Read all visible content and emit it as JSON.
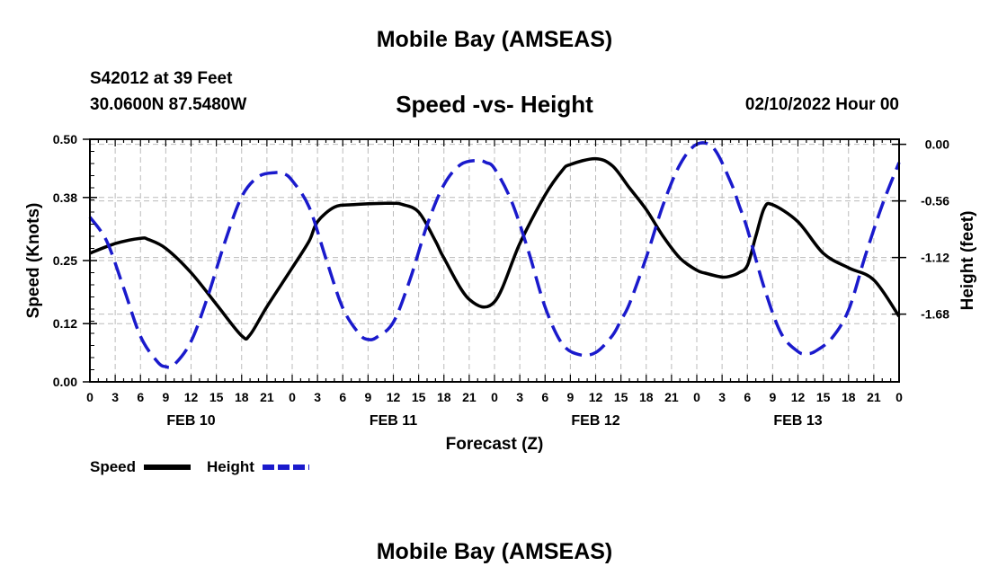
{
  "header": {
    "title": "Mobile Bay (AMSEAS)",
    "station": "S42012 at 39 Feet",
    "coords": "30.0600N  87.5480W",
    "chart_title": "Speed -vs- Height",
    "datetime": "02/10/2022 Hour 00"
  },
  "footer": {
    "title": "Mobile Bay (AMSEAS)"
  },
  "colors": {
    "speed": "#000000",
    "height": "#1a1acc",
    "grid": "#bbbbbb"
  },
  "chart_data": {
    "type": "line",
    "title": "Speed -vs- Height",
    "xlabel": "Forecast (Z)",
    "ylabel": "Speed (Knots)",
    "y2label": "Height (feet)",
    "xlim": [
      0,
      96
    ],
    "ylim": [
      0.0,
      0.5
    ],
    "y2lim": [
      -2.35,
      0.05
    ],
    "y_ticks": [
      0.0,
      0.12,
      0.25,
      0.38,
      0.5
    ],
    "y_tick_labels": [
      "0.00",
      "0.12",
      "0.25",
      "0.38",
      "0.50"
    ],
    "y2_ticks": [
      0.0,
      -0.56,
      -1.12,
      -1.68
    ],
    "y2_tick_labels": [
      "0.00",
      "-0.56",
      "-1.12",
      "-1.68"
    ],
    "x_tick_labels": [
      "0",
      "3",
      "6",
      "9",
      "12",
      "15",
      "18",
      "21",
      "0",
      "3",
      "6",
      "9",
      "12",
      "15",
      "18",
      "21",
      "0",
      "3",
      "6",
      "9",
      "12",
      "15",
      "18",
      "21",
      "0",
      "3",
      "6",
      "9",
      "12",
      "15",
      "18",
      "21",
      "0"
    ],
    "day_labels": [
      {
        "hour": 12,
        "label": "FEB 10"
      },
      {
        "hour": 36,
        "label": "FEB 11"
      },
      {
        "hour": 60,
        "label": "FEB 12"
      },
      {
        "hour": 84,
        "label": "FEB 13"
      }
    ],
    "legend_placement": "bottom-left",
    "series": [
      {
        "name": "Speed",
        "axis": "left",
        "style": "solid",
        "x": [
          0,
          3,
          6,
          7,
          9,
          12,
          15,
          18,
          19,
          21,
          24,
          26,
          27,
          29,
          31,
          33,
          35,
          36,
          37,
          39,
          41,
          42,
          45,
          48,
          51,
          54,
          56,
          57,
          60,
          62,
          64,
          66,
          68,
          70,
          72,
          73,
          75,
          76,
          77,
          78,
          79,
          80,
          81,
          84,
          87,
          90,
          93,
          96
        ],
        "y": [
          0.265,
          0.285,
          0.296,
          0.293,
          0.275,
          0.225,
          0.16,
          0.095,
          0.097,
          0.155,
          0.235,
          0.29,
          0.33,
          0.36,
          0.365,
          0.367,
          0.368,
          0.368,
          0.366,
          0.35,
          0.29,
          0.255,
          0.17,
          0.165,
          0.285,
          0.385,
          0.435,
          0.448,
          0.46,
          0.445,
          0.4,
          0.355,
          0.3,
          0.255,
          0.23,
          0.224,
          0.216,
          0.218,
          0.225,
          0.24,
          0.3,
          0.358,
          0.365,
          0.33,
          0.265,
          0.235,
          0.21,
          0.135
        ]
      },
      {
        "name": "Height",
        "axis": "right",
        "style": "dashed",
        "x": [
          0,
          2,
          4,
          6,
          8,
          9,
          10,
          12,
          14,
          16,
          18,
          20,
          22,
          23,
          24,
          26,
          28,
          30,
          32,
          33,
          34,
          36,
          38,
          40,
          42,
          44,
          46,
          47,
          48,
          50,
          52,
          54,
          56,
          58,
          60,
          62,
          63,
          64,
          66,
          68,
          70,
          72,
          74,
          76,
          77,
          78,
          80,
          82,
          84,
          85,
          86,
          88,
          90,
          92,
          94,
          96
        ],
        "y": [
          -0.72,
          -0.96,
          -1.42,
          -1.9,
          -2.15,
          -2.2,
          -2.18,
          -1.95,
          -1.5,
          -0.97,
          -0.52,
          -0.32,
          -0.28,
          -0.29,
          -0.36,
          -0.62,
          -1.13,
          -1.62,
          -1.88,
          -1.93,
          -1.91,
          -1.76,
          -1.33,
          -0.8,
          -0.4,
          -0.2,
          -0.16,
          -0.18,
          -0.24,
          -0.56,
          -1.05,
          -1.61,
          -1.97,
          -2.08,
          -2.06,
          -1.89,
          -1.74,
          -1.58,
          -1.12,
          -0.6,
          -0.2,
          0.0,
          -0.04,
          -0.37,
          -0.6,
          -0.84,
          -1.42,
          -1.87,
          -2.05,
          -2.07,
          -2.05,
          -1.92,
          -1.64,
          -1.1,
          -0.6,
          -0.18
        ]
      }
    ]
  }
}
